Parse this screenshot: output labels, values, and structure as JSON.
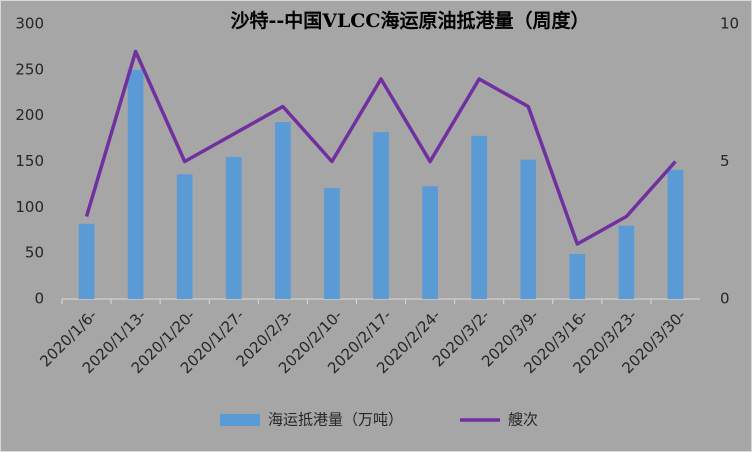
{
  "chart_data": {
    "type": "bar-line",
    "title": "沙特--中国VLCC海运原油抵港量（周度）",
    "categories": [
      "2020/1/6-",
      "2020/1/13-",
      "2020/1/20-",
      "2020/1/27-",
      "2020/2/3-",
      "2020/2/10-",
      "2020/2/17-",
      "2020/2/24-",
      "2020/3/2-",
      "2020/3/9-",
      "2020/3/16-",
      "2020/3/23-",
      "2020/3/30-"
    ],
    "series": [
      {
        "name": "海运抵港量（万吨）",
        "type": "bar",
        "color": "#5b9bd5",
        "values": [
          82,
          250,
          136,
          155,
          193,
          121,
          182,
          123,
          178,
          152,
          49,
          80,
          141
        ]
      },
      {
        "name": "艘次",
        "type": "line",
        "axis": "y2",
        "color": "#7030a0",
        "values": [
          3,
          9,
          5,
          6,
          7,
          5,
          8,
          5,
          8,
          7,
          2,
          3,
          5
        ]
      }
    ],
    "ylim": [
      0,
      300
    ],
    "yticks": [
      0,
      50,
      100,
      150,
      200,
      250,
      300
    ],
    "y2lim": [
      0,
      10
    ],
    "y2ticks": [
      0,
      5,
      10
    ]
  }
}
